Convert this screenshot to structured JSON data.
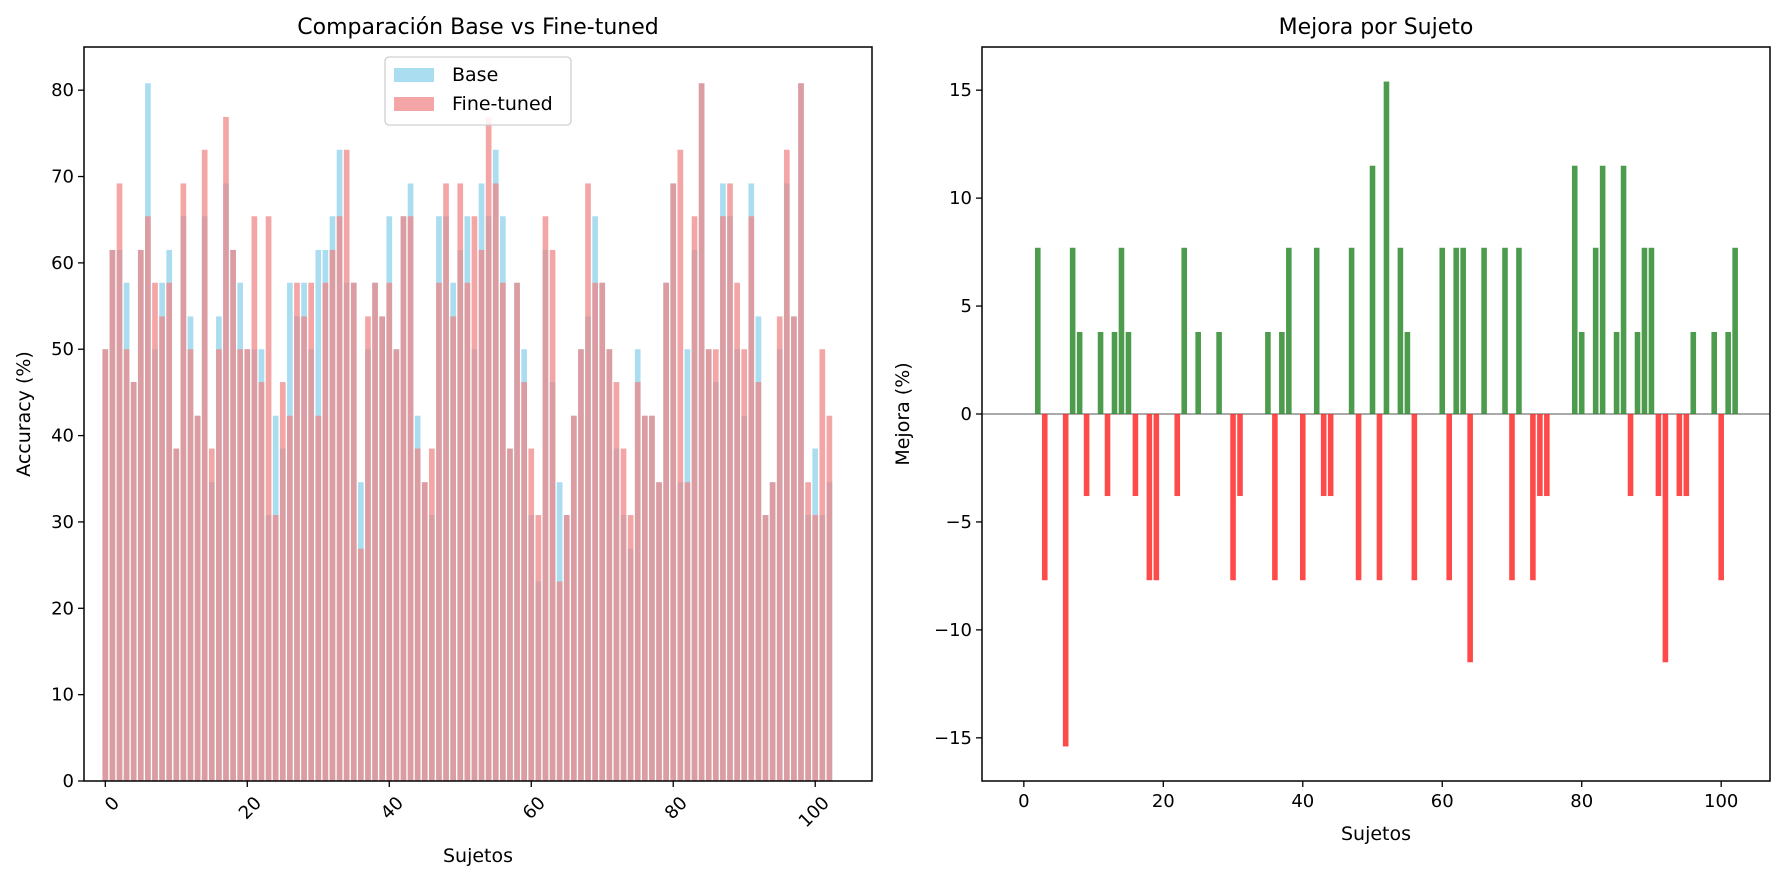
{
  "chart_data": [
    {
      "type": "bar",
      "title": "Comparación Base vs Fine-tuned",
      "xlabel": "Sujetos",
      "ylabel": "Accuracy (%)",
      "xlim": [
        -3,
        108
      ],
      "ylim": [
        0,
        85
      ],
      "xticks": [
        0,
        20,
        40,
        60,
        80,
        100
      ],
      "xtick_labels": [
        "0",
        "20",
        "40",
        "60",
        "80",
        "100"
      ],
      "xtick_rotation_deg": 45,
      "yticks": [
        0,
        10,
        20,
        30,
        40,
        50,
        60,
        70,
        80
      ],
      "ytick_labels": [
        "0",
        "10",
        "20",
        "30",
        "40",
        "50",
        "60",
        "70",
        "80"
      ],
      "grid": false,
      "legend": {
        "position": "upper center",
        "entries": [
          "Base",
          "Fine-tuned"
        ]
      },
      "series": [
        {
          "name": "Base",
          "color": "#87ceeb",
          "opacity": 0.7,
          "x": [
            0,
            1,
            2,
            3,
            4,
            5,
            6,
            7,
            8,
            9,
            10,
            11,
            12,
            13,
            14,
            15,
            16,
            17,
            18,
            19,
            20,
            21,
            22,
            23,
            24,
            25,
            26,
            27,
            28,
            29,
            30,
            31,
            32,
            33,
            34,
            35,
            36,
            37,
            38,
            39,
            40,
            41,
            42,
            43,
            44,
            45,
            46,
            47,
            48,
            49,
            50,
            51,
            52,
            53,
            54,
            55,
            56,
            57,
            58,
            59,
            60,
            61,
            62,
            63,
            64,
            65,
            66,
            67,
            68,
            69,
            70,
            71,
            72,
            73,
            74,
            75,
            76,
            77,
            78,
            79,
            80,
            81,
            82,
            83,
            84,
            85,
            86,
            87,
            88,
            89,
            90,
            91,
            92,
            93,
            94,
            95,
            96,
            97,
            98,
            99,
            100,
            101,
            102
          ],
          "values": [
            50.0,
            61.5,
            61.5,
            57.7,
            46.2,
            61.5,
            80.8,
            50.0,
            57.7,
            61.5,
            38.5,
            65.4,
            53.8,
            42.3,
            65.4,
            34.6,
            53.8,
            69.2,
            61.5,
            57.7,
            50.0,
            50.0,
            50.0,
            30.8,
            42.3,
            38.5,
            57.7,
            53.8,
            57.7,
            50.0,
            61.5,
            61.5,
            65.4,
            73.1,
            57.7,
            57.7,
            34.6,
            50.0,
            57.7,
            53.8,
            65.4,
            50.0,
            65.4,
            69.2,
            42.3,
            34.6,
            30.8,
            65.4,
            65.4,
            57.7,
            61.5,
            65.4,
            50.0,
            69.2,
            65.4,
            73.1,
            65.4,
            38.5,
            57.7,
            50.0,
            30.8,
            23.1,
            61.5,
            46.2,
            34.6,
            30.8,
            42.3,
            50.0,
            53.8,
            65.4,
            57.7,
            50.0,
            38.5,
            30.8,
            26.9,
            50.0,
            42.3,
            42.3,
            34.6,
            57.7,
            69.2,
            34.6,
            50.0,
            61.5,
            80.8,
            50.0,
            46.2,
            69.2,
            65.4,
            50.0,
            42.3,
            69.2,
            53.8,
            30.8,
            34.6,
            50.0,
            69.2,
            53.8,
            80.8,
            30.8,
            38.5,
            30.8,
            34.6
          ]
        },
        {
          "name": "Fine-tuned",
          "color": "#f08080",
          "opacity": 0.7,
          "x": [
            0,
            1,
            2,
            3,
            4,
            5,
            6,
            7,
            8,
            9,
            10,
            11,
            12,
            13,
            14,
            15,
            16,
            17,
            18,
            19,
            20,
            21,
            22,
            23,
            24,
            25,
            26,
            27,
            28,
            29,
            30,
            31,
            32,
            33,
            34,
            35,
            36,
            37,
            38,
            39,
            40,
            41,
            42,
            43,
            44,
            45,
            46,
            47,
            48,
            49,
            50,
            51,
            52,
            53,
            54,
            55,
            56,
            57,
            58,
            59,
            60,
            61,
            62,
            63,
            64,
            65,
            66,
            67,
            68,
            69,
            70,
            71,
            72,
            73,
            74,
            75,
            76,
            77,
            78,
            79,
            80,
            81,
            82,
            83,
            84,
            85,
            86,
            87,
            88,
            89,
            90,
            91,
            92,
            93,
            94,
            95,
            96,
            97,
            98,
            99,
            100,
            101,
            102
          ],
          "values": [
            50.0,
            61.5,
            69.2,
            50.0,
            46.2,
            61.5,
            65.4,
            57.7,
            53.8,
            57.7,
            38.5,
            69.2,
            50.0,
            42.3,
            73.1,
            38.5,
            50.0,
            76.9,
            61.5,
            50.0,
            50.0,
            65.4,
            46.2,
            65.4,
            30.8,
            46.2,
            42.3,
            57.7,
            53.8,
            57.7,
            42.3,
            57.7,
            61.5,
            65.4,
            73.1,
            57.7,
            26.9,
            53.8,
            57.7,
            53.8,
            57.7,
            50.0,
            65.4,
            65.4,
            38.5,
            34.6,
            38.5,
            57.7,
            69.2,
            53.8,
            69.2,
            57.7,
            65.4,
            61.5,
            76.9,
            69.2,
            57.7,
            38.5,
            57.7,
            46.2,
            38.5,
            30.8,
            65.4,
            61.5,
            23.1,
            30.8,
            42.3,
            50.0,
            69.2,
            57.7,
            57.7,
            50.0,
            46.2,
            38.5,
            30.8,
            46.2,
            42.3,
            42.3,
            34.6,
            57.7,
            69.2,
            73.1,
            34.6,
            65.4,
            80.8,
            50.0,
            50.0,
            65.4,
            69.2,
            57.7,
            50.0,
            65.4,
            46.2,
            30.8,
            34.6,
            53.8,
            73.1,
            53.8,
            80.8,
            34.6,
            30.8,
            50.0,
            42.3
          ]
        }
      ]
    },
    {
      "type": "bar",
      "title": "Mejora por Sujeto",
      "xlabel": "Sujetos",
      "ylabel": "Mejora (%)",
      "xlim": [
        -6,
        107
      ],
      "ylim": [
        -17,
        17
      ],
      "xticks": [
        0,
        20,
        40,
        60,
        80,
        100
      ],
      "xtick_labels": [
        "0",
        "20",
        "40",
        "60",
        "80",
        "100"
      ],
      "yticks": [
        -15,
        -10,
        -5,
        0,
        5,
        10,
        15
      ],
      "ytick_labels": [
        "−15",
        "−10",
        "−5",
        "0",
        "5",
        "10",
        "15"
      ],
      "grid": false,
      "zero_line": true,
      "positive_color": "#2e8b2e",
      "negative_color": "#ff2a2a",
      "series": [
        {
          "x": [
            2,
            3,
            7,
            8,
            9,
            11,
            12,
            13,
            14,
            15,
            16,
            18,
            19,
            22,
            23,
            25,
            28,
            30,
            31,
            35,
            36,
            37,
            38,
            40,
            42,
            43,
            44,
            47,
            48,
            50,
            51,
            52,
            54,
            55,
            56,
            60,
            61,
            62,
            63,
            64,
            66,
            69,
            70,
            71,
            73,
            74,
            75,
            79,
            80,
            82,
            83,
            85,
            86,
            87,
            88,
            89,
            90,
            91,
            92,
            94,
            95,
            96,
            99,
            100,
            101,
            102
          ],
          "values": [
            7.7,
            -7.7,
            7.7,
            3.8,
            -3.8,
            3.8,
            -3.8,
            3.8,
            7.7,
            3.8,
            -3.8,
            -7.7,
            -7.7,
            -3.8,
            7.7,
            3.8,
            3.8,
            -7.7,
            -3.8,
            3.8,
            -7.7,
            3.8,
            7.7,
            -7.7,
            7.7,
            -3.8,
            -3.8,
            7.7,
            -7.7,
            11.5,
            -7.7,
            15.4,
            7.7,
            3.8,
            -7.7,
            7.7,
            -7.7,
            7.7,
            7.7,
            -11.5,
            7.7,
            7.7,
            -7.7,
            7.7,
            -7.7,
            -3.8,
            -3.8,
            11.5,
            3.8,
            7.7,
            11.5,
            3.8,
            11.5,
            -3.8,
            3.8,
            7.7,
            7.7,
            -3.8,
            -11.5,
            -3.8,
            -3.8,
            3.8,
            3.8,
            -7.7,
            3.8,
            7.7
          ],
          "extra": {
            "6": -15.4
          }
        }
      ]
    }
  ]
}
